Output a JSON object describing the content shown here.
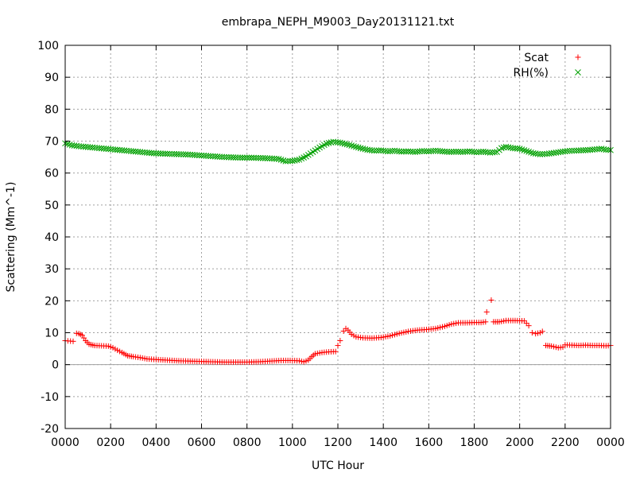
{
  "chart_data": {
    "type": "scatter",
    "title": "embrapa_NEPH_M9003_Day20131121.txt",
    "xlabel": "UTC Hour",
    "ylabel": "Scattering (Mm^-1)",
    "xlim": [
      0,
      24
    ],
    "ylim": [
      -20,
      100
    ],
    "x_ticks": [
      0,
      2,
      4,
      6,
      8,
      10,
      12,
      14,
      16,
      18,
      20,
      22,
      24
    ],
    "x_tick_labels": [
      "0000",
      "0200",
      "0400",
      "0600",
      "0800",
      "1000",
      "1200",
      "1400",
      "1600",
      "1800",
      "2000",
      "2200",
      "0000"
    ],
    "y_ticks": [
      -20,
      -10,
      0,
      10,
      20,
      30,
      40,
      50,
      60,
      70,
      80,
      90,
      100
    ],
    "y_tick_labels": [
      "-20",
      "-10",
      "0",
      "10",
      "20",
      "30",
      "40",
      "50",
      "60",
      "70",
      "80",
      "90",
      "100"
    ],
    "grid": true,
    "zero_line": true,
    "legend_position": "top-right",
    "series": [
      {
        "name": "Scat",
        "marker": "+",
        "color": "#ff0000",
        "points": [
          [
            0.0,
            7.5
          ],
          [
            0.35,
            7.3
          ],
          [
            0.5,
            9.8
          ],
          [
            0.6,
            9.7
          ],
          [
            0.75,
            9.2
          ],
          [
            0.9,
            7.5
          ],
          [
            1.05,
            6.4
          ],
          [
            1.3,
            6.0
          ],
          [
            1.6,
            5.9
          ],
          [
            1.9,
            5.8
          ],
          [
            2.1,
            5.3
          ],
          [
            2.3,
            4.5
          ],
          [
            2.5,
            3.8
          ],
          [
            2.75,
            2.8
          ],
          [
            3.0,
            2.5
          ],
          [
            3.3,
            2.2
          ],
          [
            3.6,
            1.8
          ],
          [
            4.0,
            1.6
          ],
          [
            4.5,
            1.4
          ],
          [
            5.0,
            1.2
          ],
          [
            5.5,
            1.1
          ],
          [
            6.0,
            1.0
          ],
          [
            6.5,
            0.9
          ],
          [
            7.0,
            0.8
          ],
          [
            7.5,
            0.8
          ],
          [
            8.0,
            0.8
          ],
          [
            8.5,
            0.9
          ],
          [
            9.0,
            1.1
          ],
          [
            9.5,
            1.3
          ],
          [
            10.0,
            1.3
          ],
          [
            10.3,
            1.2
          ],
          [
            10.5,
            0.9
          ],
          [
            10.7,
            1.4
          ],
          [
            10.85,
            2.5
          ],
          [
            11.0,
            3.4
          ],
          [
            11.3,
            3.8
          ],
          [
            11.6,
            4.0
          ],
          [
            11.9,
            4.1
          ],
          [
            12.0,
            6.0
          ],
          [
            12.1,
            7.5
          ],
          [
            12.25,
            10.5
          ],
          [
            12.35,
            11.3
          ],
          [
            12.45,
            10.8
          ],
          [
            12.6,
            9.5
          ],
          [
            12.8,
            8.7
          ],
          [
            13.1,
            8.4
          ],
          [
            13.5,
            8.3
          ],
          [
            13.9,
            8.5
          ],
          [
            14.3,
            9.0
          ],
          [
            14.7,
            9.8
          ],
          [
            15.1,
            10.4
          ],
          [
            15.5,
            10.8
          ],
          [
            15.9,
            11.0
          ],
          [
            16.3,
            11.3
          ],
          [
            16.7,
            12.0
          ],
          [
            17.0,
            12.7
          ],
          [
            17.3,
            13.1
          ],
          [
            17.6,
            13.1
          ],
          [
            18.0,
            13.2
          ],
          [
            18.3,
            13.2
          ],
          [
            18.5,
            13.4
          ],
          [
            18.55,
            16.5
          ],
          [
            18.75,
            20.2
          ],
          [
            18.85,
            13.4
          ],
          [
            19.1,
            13.4
          ],
          [
            19.4,
            13.8
          ],
          [
            19.8,
            13.8
          ],
          [
            20.2,
            13.7
          ],
          [
            20.4,
            12.2
          ],
          [
            20.55,
            10.0
          ],
          [
            20.7,
            9.7
          ],
          [
            20.9,
            10.0
          ],
          [
            21.0,
            10.4
          ],
          [
            21.15,
            6.0
          ],
          [
            21.4,
            5.8
          ],
          [
            21.7,
            5.3
          ],
          [
            21.9,
            5.5
          ],
          [
            22.0,
            6.2
          ],
          [
            22.3,
            6.1
          ],
          [
            22.6,
            6.0
          ],
          [
            22.9,
            6.1
          ],
          [
            23.2,
            6.0
          ],
          [
            23.5,
            6.0
          ],
          [
            23.8,
            5.9
          ],
          [
            24.0,
            6.0
          ]
        ]
      },
      {
        "name": "RH(%)",
        "marker": "x",
        "color": "#00a000",
        "points": [
          [
            0.0,
            69.3
          ],
          [
            0.3,
            68.7
          ],
          [
            0.6,
            68.4
          ],
          [
            0.9,
            68.2
          ],
          [
            1.2,
            68.0
          ],
          [
            1.5,
            67.8
          ],
          [
            1.8,
            67.6
          ],
          [
            2.1,
            67.4
          ],
          [
            2.4,
            67.2
          ],
          [
            2.7,
            67.0
          ],
          [
            3.0,
            66.8
          ],
          [
            3.3,
            66.6
          ],
          [
            3.6,
            66.4
          ],
          [
            3.9,
            66.2
          ],
          [
            4.2,
            66.1
          ],
          [
            4.6,
            66.0
          ],
          [
            5.0,
            65.9
          ],
          [
            5.4,
            65.8
          ],
          [
            5.8,
            65.6
          ],
          [
            6.2,
            65.4
          ],
          [
            6.6,
            65.2
          ],
          [
            7.0,
            65.0
          ],
          [
            7.4,
            64.9
          ],
          [
            7.8,
            64.8
          ],
          [
            8.2,
            64.8
          ],
          [
            8.6,
            64.7
          ],
          [
            9.0,
            64.6
          ],
          [
            9.4,
            64.4
          ],
          [
            9.7,
            63.7
          ],
          [
            10.0,
            63.8
          ],
          [
            10.3,
            64.2
          ],
          [
            10.6,
            65.2
          ],
          [
            10.9,
            66.6
          ],
          [
            11.2,
            68.0
          ],
          [
            11.5,
            69.2
          ],
          [
            11.8,
            69.8
          ],
          [
            12.1,
            69.5
          ],
          [
            12.4,
            69.0
          ],
          [
            12.7,
            68.4
          ],
          [
            13.0,
            67.8
          ],
          [
            13.3,
            67.3
          ],
          [
            13.6,
            67.0
          ],
          [
            13.9,
            67.1
          ],
          [
            14.2,
            66.8
          ],
          [
            14.5,
            67.0
          ],
          [
            14.8,
            66.7
          ],
          [
            15.1,
            66.8
          ],
          [
            15.4,
            66.6
          ],
          [
            15.7,
            66.9
          ],
          [
            16.0,
            66.8
          ],
          [
            16.3,
            67.0
          ],
          [
            16.6,
            66.8
          ],
          [
            16.9,
            66.6
          ],
          [
            17.2,
            66.7
          ],
          [
            17.5,
            66.6
          ],
          [
            17.8,
            66.8
          ],
          [
            18.1,
            66.5
          ],
          [
            18.4,
            66.7
          ],
          [
            18.7,
            66.4
          ],
          [
            19.0,
            66.6
          ],
          [
            19.2,
            67.8
          ],
          [
            19.4,
            68.2
          ],
          [
            19.7,
            67.8
          ],
          [
            20.0,
            67.6
          ],
          [
            20.3,
            66.9
          ],
          [
            20.6,
            66.2
          ],
          [
            20.9,
            65.9
          ],
          [
            21.2,
            66.0
          ],
          [
            21.5,
            66.3
          ],
          [
            21.8,
            66.6
          ],
          [
            22.1,
            66.9
          ],
          [
            22.4,
            67.0
          ],
          [
            22.7,
            67.1
          ],
          [
            23.0,
            67.2
          ],
          [
            23.3,
            67.4
          ],
          [
            23.6,
            67.6
          ],
          [
            23.8,
            67.3
          ],
          [
            24.0,
            67.2
          ]
        ]
      }
    ]
  }
}
